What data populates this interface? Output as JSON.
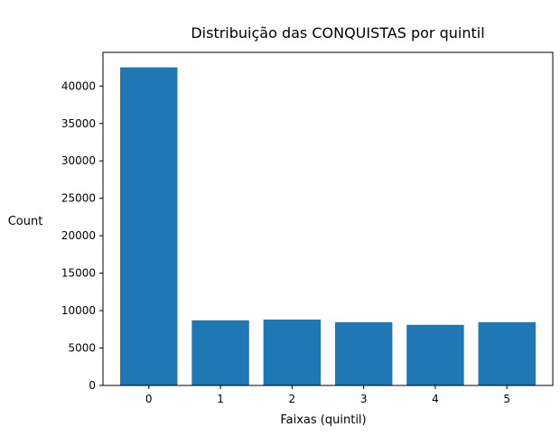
{
  "chart_data": {
    "type": "bar",
    "title": "Distribuição das CONQUISTAS por quintil",
    "xlabel": "Faixas (quintil)",
    "ylabel": "Count",
    "categories": [
      "0",
      "1",
      "2",
      "3",
      "4",
      "5"
    ],
    "values": [
      42500,
      8700,
      8800,
      8450,
      8100,
      8450
    ],
    "ylim": [
      0,
      44500
    ],
    "xlim": [
      -0.64,
      5.64
    ],
    "yticks": [
      "0",
      "5000",
      "10000",
      "15000",
      "20000",
      "25000",
      "30000",
      "35000",
      "40000"
    ],
    "bar_color": "#1f77b4",
    "grid": false
  }
}
